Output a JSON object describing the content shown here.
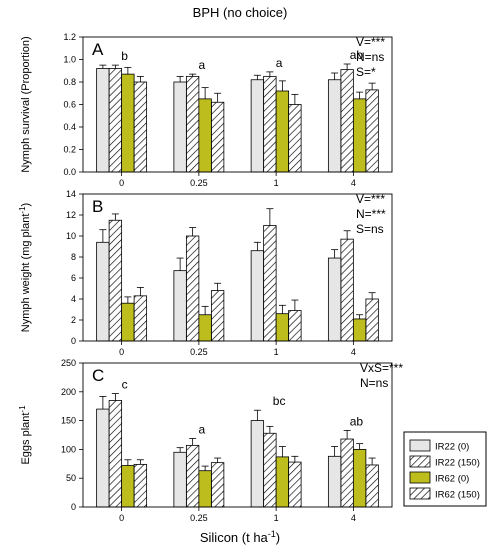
{
  "figure": {
    "title": "BPH (no choice)",
    "xlabel_main": "Silicon (t ha",
    "xlabel_sup": "-1",
    "xlabel_end": ")"
  },
  "legend": {
    "entries": [
      "IR22 (0)",
      "IR22 (150)",
      "IR62 (0)",
      "IR62 (150)"
    ]
  },
  "styles": {
    "colors": [
      "#e6e6e6",
      "#ffffff",
      "#bdbd1e",
      "#bdbd1e"
    ],
    "hatched": [
      false,
      true,
      false,
      true
    ]
  },
  "chart_data": [
    {
      "type": "bar",
      "panel": "A",
      "ylabel": "Nymph survival (Proportion)",
      "ylabel_sup": "",
      "ylabel_end": "",
      "ylim": [
        0,
        1.2
      ],
      "yticks": [
        "0.0",
        "0.2",
        "0.4",
        "0.6",
        "0.8",
        "1.0",
        "1.2"
      ],
      "categories": [
        "0",
        "0.25",
        "1",
        "4"
      ],
      "series": [
        {
          "name": "IR22 (0)",
          "values": [
            0.92,
            0.8,
            0.82,
            0.82
          ],
          "errors": [
            0.03,
            0.05,
            0.04,
            0.06
          ]
        },
        {
          "name": "IR22 (150)",
          "values": [
            0.92,
            0.85,
            0.85,
            0.91
          ],
          "errors": [
            0.03,
            0.02,
            0.04,
            0.05
          ]
        },
        {
          "name": "IR62 (0)",
          "values": [
            0.87,
            0.65,
            0.72,
            0.65
          ],
          "errors": [
            0.06,
            0.1,
            0.09,
            0.06
          ]
        },
        {
          "name": "IR62 (150)",
          "values": [
            0.8,
            0.62,
            0.6,
            0.73
          ],
          "errors": [
            0.05,
            0.08,
            0.09,
            0.06
          ]
        }
      ],
      "group_letters": [
        "b",
        "a",
        "a",
        "ab"
      ],
      "stats": [
        "V=***",
        "N=ns",
        "S=*"
      ]
    },
    {
      "type": "bar",
      "panel": "B",
      "ylabel": "Nymph weight (mg plant",
      "ylabel_sup": "-1",
      "ylabel_end": ")",
      "ylim": [
        0,
        14
      ],
      "yticks": [
        "0",
        "2",
        "4",
        "6",
        "8",
        "10",
        "12",
        "14"
      ],
      "categories": [
        "0",
        "0.25",
        "1",
        "4"
      ],
      "series": [
        {
          "name": "IR22 (0)",
          "values": [
            9.4,
            6.7,
            8.6,
            7.9
          ],
          "errors": [
            1.2,
            1.2,
            0.8,
            0.8
          ]
        },
        {
          "name": "IR22 (150)",
          "values": [
            11.5,
            10.0,
            11.0,
            9.7
          ],
          "errors": [
            0.6,
            0.8,
            1.6,
            0.8
          ]
        },
        {
          "name": "IR62 (0)",
          "values": [
            3.6,
            2.5,
            2.6,
            2.1
          ],
          "errors": [
            0.6,
            0.8,
            0.8,
            0.4
          ]
        },
        {
          "name": "IR62 (150)",
          "values": [
            4.3,
            4.8,
            2.9,
            4.0
          ],
          "errors": [
            0.8,
            0.7,
            1.0,
            0.6
          ]
        }
      ],
      "group_letters": [],
      "stats": [
        "V=***",
        "N=***",
        "S=ns"
      ]
    },
    {
      "type": "bar",
      "panel": "C",
      "ylabel": "Eggs plant",
      "ylabel_sup": "-1",
      "ylabel_end": "",
      "ylim": [
        0,
        250
      ],
      "yticks": [
        "0",
        "50",
        "100",
        "150",
        "200",
        "250"
      ],
      "categories": [
        "0",
        "0.25",
        "1",
        "4"
      ],
      "series": [
        {
          "name": "IR22 (0)",
          "values": [
            170,
            95,
            150,
            88
          ],
          "errors": [
            22,
            8,
            18,
            17
          ]
        },
        {
          "name": "IR22 (150)",
          "values": [
            185,
            107,
            128,
            118
          ],
          "errors": [
            12,
            12,
            12,
            15
          ]
        },
        {
          "name": "IR62 (0)",
          "values": [
            72,
            63,
            87,
            100
          ],
          "errors": [
            10,
            8,
            18,
            10
          ]
        },
        {
          "name": "IR62 (150)",
          "values": [
            74,
            77,
            78,
            73
          ],
          "errors": [
            8,
            8,
            10,
            12
          ]
        }
      ],
      "group_letters": [
        "c",
        "a",
        "bc",
        "ab"
      ],
      "stats": [
        "VxS=***",
        "N=ns"
      ]
    }
  ]
}
